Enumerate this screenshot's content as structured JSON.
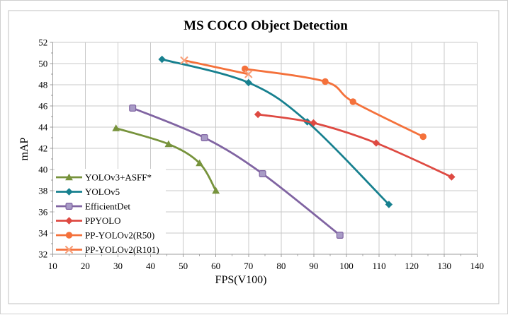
{
  "chart_data": {
    "type": "line",
    "title": "MS COCO Object Detection",
    "xlabel": "FPS(V100)",
    "ylabel": "mAP",
    "xlim": [
      10,
      140
    ],
    "ylim": [
      32,
      52
    ],
    "x_ticks": [
      10,
      20,
      30,
      40,
      50,
      60,
      70,
      80,
      90,
      100,
      110,
      120,
      130,
      140
    ],
    "y_ticks": [
      32,
      34,
      36,
      38,
      40,
      42,
      44,
      46,
      48,
      50,
      52
    ],
    "grid": true,
    "legend_position": "inside-bottom-left",
    "series": [
      {
        "name": "YOLOv3+ASFF*",
        "color": "#77933C",
        "marker": "triangle",
        "points": [
          [
            29.4,
            43.9
          ],
          [
            45.5,
            42.4
          ],
          [
            55,
            40.6
          ],
          [
            60,
            38.0
          ]
        ]
      },
      {
        "name": "YOLOv5",
        "color": "#17808F",
        "marker": "diamond",
        "points": [
          [
            43.5,
            50.4
          ],
          [
            70,
            48.2
          ],
          [
            88,
            44.5
          ],
          [
            113,
            36.7
          ]
        ]
      },
      {
        "name": "EfficientDet",
        "color": "#8064A2",
        "marker": "square",
        "marker_fill": "#A89BC6",
        "points": [
          [
            34.5,
            45.8
          ],
          [
            56.5,
            43.0
          ],
          [
            74.3,
            39.6
          ],
          [
            98,
            33.8
          ]
        ]
      },
      {
        "name": "PPYOLO",
        "color": "#DE4A42",
        "marker": "diamond",
        "points": [
          [
            72.9,
            45.2
          ],
          [
            89.9,
            44.4
          ],
          [
            109.1,
            42.5
          ],
          [
            132.2,
            39.3
          ]
        ]
      },
      {
        "name": "PP-YOLOv2(R50)",
        "color": "#F4713B",
        "marker": "circle",
        "points": [
          [
            68.9,
            49.5
          ],
          [
            93.5,
            48.3
          ],
          [
            102,
            46.4
          ],
          [
            123.5,
            43.1
          ]
        ]
      },
      {
        "name": "PP-YOLOv2(R101)",
        "color": "#F4713B",
        "marker": "x",
        "marker_color": "#F8A07A",
        "points": [
          [
            50.3,
            50.3
          ],
          [
            70,
            49.0
          ]
        ]
      }
    ],
    "colors": {
      "gridline": "#C9C9C9",
      "axis": "#9C9C9C",
      "frame": "#C0C0C0",
      "background": "#FFFFFF",
      "text": "#000000"
    }
  }
}
